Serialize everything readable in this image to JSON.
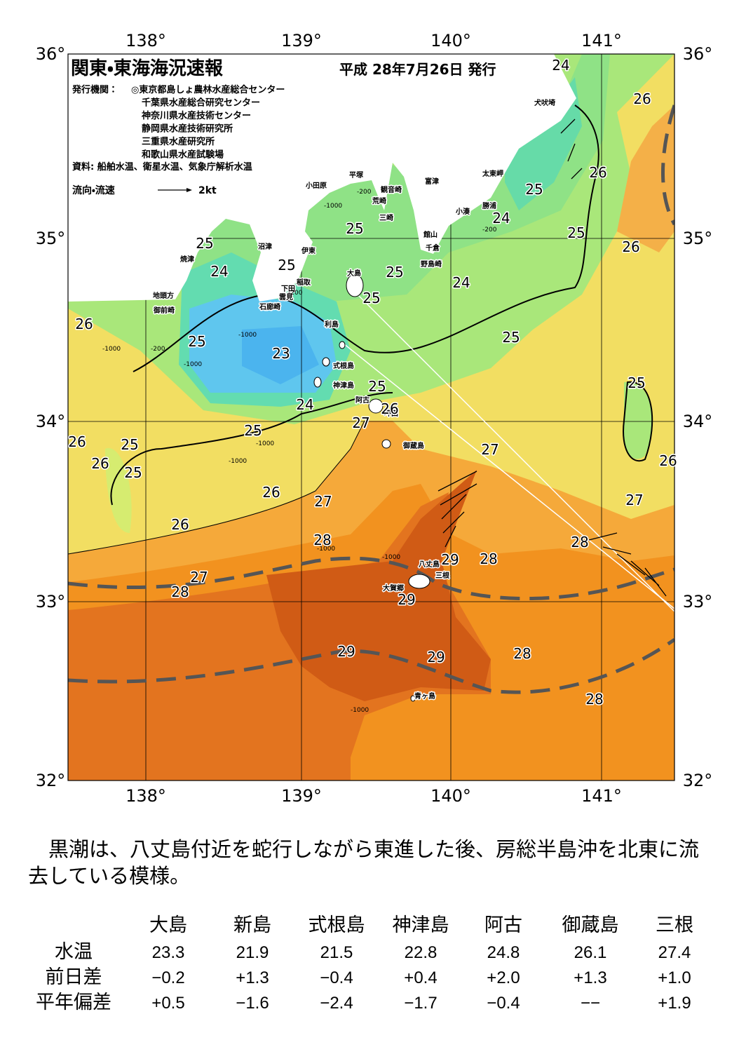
{
  "header": {
    "title": "関東・東海海況速報",
    "date": "平成 28年7月26日 発行",
    "issuer_label": "発行機関：",
    "issuers": [
      "◎東京都島しょ農林水産総合センター",
      "千葉県水産総合研究センター",
      "神奈川県水産技術センター",
      "静岡県水産技術研究所",
      "三重県水産研究所",
      "和歌山県水産試験場"
    ],
    "source": "資料: 船舶水温、衛星水温、気象庁解析水温",
    "legend_label": "流向・流速",
    "legend_scale": "2kt"
  },
  "map": {
    "lon_labels": [
      "138°",
      "139°",
      "140°",
      "141°"
    ],
    "lat_labels": [
      "36°",
      "35°",
      "34°",
      "33°",
      "32°"
    ],
    "places": [
      "犬吠埼",
      "太東岬",
      "勝浦",
      "小湊",
      "富津",
      "平塚",
      "観音崎",
      "荒崎",
      "三崎",
      "館山",
      "千倉",
      "野島崎",
      "小田原",
      "沼津",
      "伊東",
      "焼津",
      "稲取",
      "下田",
      "雲見",
      "石廊崎",
      "地頭方",
      "御前崎",
      "大島",
      "利島",
      "式根島",
      "神津島",
      "阿古",
      "坪田",
      "御蔵島",
      "八丈島",
      "三根",
      "大賀郷",
      "青ヶ島"
    ],
    "depth_labels": [
      "-200",
      "-1000",
      "-200",
      "-1000",
      "-200",
      "-1000",
      "-1000",
      "-1000",
      "-1000",
      "-1000",
      "-1000",
      "-200",
      "-1000"
    ],
    "isotherm_labels": [
      "24",
      "26",
      "26",
      "25",
      "24",
      "25",
      "26",
      "25",
      "25",
      "24",
      "25",
      "25",
      "24",
      "25",
      "26",
      "25",
      "23",
      "25",
      "25",
      "25",
      "24",
      "26",
      "27",
      "25",
      "26",
      "25",
      "26",
      "25",
      "27",
      "26",
      "26",
      "27",
      "27",
      "26",
      "28",
      "28",
      "29",
      "28",
      "27",
      "28",
      "29",
      "29",
      "29",
      "28",
      "28"
    ]
  },
  "description": "黒潮は、八丈島付近を蛇行しながら東進した後、房総半島沖を北東に流去している模様。",
  "table": {
    "columns": [
      "大島",
      "新島",
      "式根島",
      "神津島",
      "阿古",
      "御蔵島",
      "三根"
    ],
    "rows": [
      {
        "label": "水温",
        "cells": [
          "23.3",
          "21.9",
          "21.5",
          "22.8",
          "24.8",
          "26.1",
          "27.4"
        ]
      },
      {
        "label": "前日差",
        "cells": [
          "−0.2",
          "+1.3",
          "−0.4",
          "+0.4",
          "+2.0",
          "+1.3",
          "+1.0"
        ]
      },
      {
        "label": "平年偏差",
        "cells": [
          "+0.5",
          "−1.6",
          "−2.4",
          "−1.7",
          "−0.4",
          "−−",
          "+1.9"
        ]
      }
    ]
  }
}
